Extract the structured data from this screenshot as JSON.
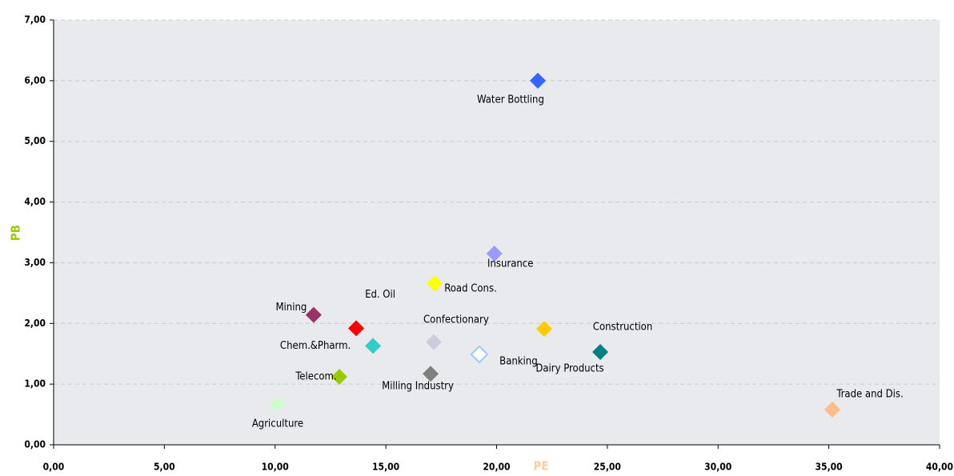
{
  "chart_data": {
    "type": "scatter",
    "x_label": "PE",
    "y_label": "PB",
    "xlim": [
      0,
      40
    ],
    "xticks": [
      {
        "value": 0,
        "label": "0,00"
      },
      {
        "value": 5,
        "label": "5,00"
      },
      {
        "value": 10,
        "label": "10,00"
      },
      {
        "value": 15,
        "label": "15,00"
      },
      {
        "value": 20,
        "label": "20,00"
      },
      {
        "value": 25,
        "label": "25,00"
      },
      {
        "value": 30,
        "label": "30,00"
      },
      {
        "value": 35,
        "label": "35,00"
      },
      {
        "value": 40,
        "label": "40,00"
      }
    ],
    "ylim": [
      0,
      7
    ],
    "yticks": [
      {
        "value": 0,
        "label": "0,00"
      },
      {
        "value": 1,
        "label": "1,00"
      },
      {
        "value": 2,
        "label": "2,00"
      },
      {
        "value": 3,
        "label": "3,00"
      },
      {
        "value": 4,
        "label": "4,00"
      },
      {
        "value": 5,
        "label": "5,00"
      },
      {
        "value": 6,
        "label": "6,00"
      },
      {
        "value": 7,
        "label": "7,00"
      }
    ],
    "grid": true,
    "series": [
      {
        "name": "Water Bottling",
        "color": "#3366ff",
        "x": [
          21.86
        ],
        "values": [
          6.0
        ]
      },
      {
        "name": "Insurance",
        "color": "#9999ff",
        "x": [
          19.9
        ],
        "values": [
          3.15
        ]
      },
      {
        "name": "Road Cons.",
        "color": "#ffff00",
        "x": [
          17.2
        ],
        "values": [
          2.66
        ]
      },
      {
        "name": "Mining",
        "color": "#993366",
        "x": [
          11.74
        ],
        "values": [
          2.14
        ]
      },
      {
        "name": "Ed. Oil",
        "color": "#ff0000",
        "x": [
          13.66
        ],
        "values": [
          1.92
        ]
      },
      {
        "name": "Confectionary",
        "color": "#ccccdd",
        "x": [
          17.16
        ],
        "values": [
          1.69
        ]
      },
      {
        "name": "Chem.&Pharm.",
        "color": "#33cccc",
        "x": [
          14.42
        ],
        "values": [
          1.63
        ]
      },
      {
        "name": "Banking",
        "color": "#ffffff",
        "x": [
          19.22
        ],
        "values": [
          1.49
        ]
      },
      {
        "name": "Dairy Products",
        "color": "#ffcc00",
        "x": [
          22.15
        ],
        "values": [
          1.91
        ]
      },
      {
        "name": "Construction",
        "color": "#008080",
        "x": [
          24.68
        ],
        "values": [
          1.53
        ]
      },
      {
        "name": "Telecom.",
        "color": "#99cc00",
        "x": [
          12.9
        ],
        "values": [
          1.12
        ]
      },
      {
        "name": "Milling Industry",
        "color": "#808080",
        "x": [
          17.02
        ],
        "values": [
          1.17
        ]
      },
      {
        "name": "Agriculture",
        "color": "#ccffcc",
        "x": [
          10.08
        ],
        "values": [
          0.67
        ]
      },
      {
        "name": "Trade and Dis.",
        "color": "#ffbb88",
        "x": [
          35.16
        ],
        "values": [
          0.58
        ]
      }
    ]
  }
}
